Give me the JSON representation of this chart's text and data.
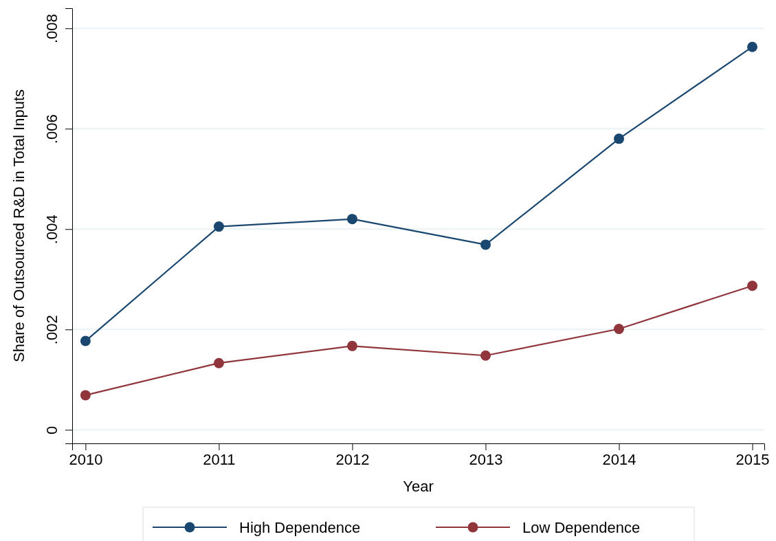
{
  "chart_data": {
    "type": "line",
    "xlabel": "Year",
    "ylabel": "Share of Outsourced R&D in Total Inputs",
    "x": [
      2010,
      2011,
      2012,
      2013,
      2014,
      2015
    ],
    "xlim": [
      2009.9,
      2015.09
    ],
    "xticks": [
      2010,
      2011,
      2012,
      2013,
      2014,
      2015
    ],
    "ylim": [
      -0.00027,
      0.0084
    ],
    "yticks": [
      0,
      {
        "value": 0.002,
        "label": ".002"
      },
      {
        "value": 0.004,
        "label": ".004"
      },
      {
        "value": 0.006,
        "label": ".006"
      },
      {
        "value": 0.008,
        "label": ".008"
      }
    ],
    "grid": "y",
    "legend": "bottom",
    "marker": "circle",
    "line_style": "solid",
    "series": [
      {
        "name": "High Dependence",
        "color": "#1a476f",
        "values": [
          0.00177,
          0.00405,
          0.0042,
          0.00369,
          0.0058,
          0.00763
        ]
      },
      {
        "name": "Low Dependence",
        "color": "#90353b",
        "values": [
          0.00069,
          0.00133,
          0.00167,
          0.00148,
          0.00201,
          0.00287
        ]
      }
    ]
  }
}
